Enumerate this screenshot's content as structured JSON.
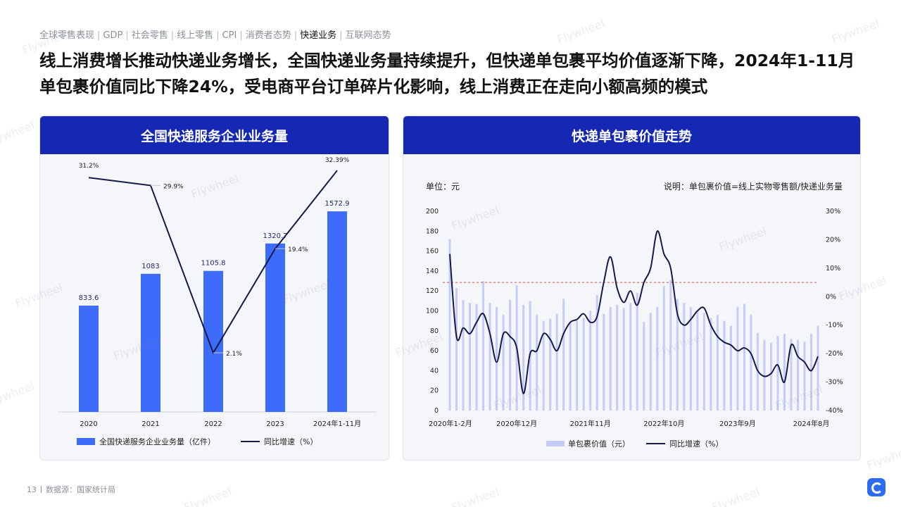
{
  "nav": {
    "items": [
      "全球零售表现",
      "GDP",
      "社会零售",
      "线上零售",
      "CPI",
      "消费者态势",
      "快递业务",
      "互联网态势"
    ],
    "active_index": 6
  },
  "headline": "线上消费增长推动快递业务增长，全国快递业务量持续提升，但快递单包裹平均价值逐渐下降，2024年1-11月单包裹价值同比下降24%，受电商平台订单碎片化影响，线上消费正在走向小额高频的模式",
  "panel_left": {
    "title": "全国快递服务企业业务量"
  },
  "panel_right": {
    "title": "快递单包裹价值走势",
    "unit_label": "单位：元",
    "note": "说明：单包裹价值=线上实物零售额/快递业务量"
  },
  "footer": {
    "page": "13",
    "source": "数据源：国家统计局"
  },
  "watermark": "Flywheel",
  "colors": {
    "bar": "#3d6bfa",
    "line": "#141a4a",
    "header": "#1428b4",
    "bar_light": "#c3cdf7",
    "ref_line": "#e04a4a"
  },
  "chart_data": [
    {
      "type": "bar",
      "categories": [
        "2020",
        "2021",
        "2022",
        "2023",
        "2024年1-11月"
      ],
      "series": [
        {
          "name": "全国快递服务企业业务量（亿件）",
          "type": "bar",
          "values": [
            833.6,
            1083,
            1105.8,
            1320.7,
            1572.9
          ],
          "labels": [
            "833.6",
            "1083",
            "1105.8",
            "1320.7",
            "1572.9"
          ]
        },
        {
          "name": "同比增速（%）",
          "type": "line",
          "values": [
            31.2,
            29.9,
            2.1,
            19.4,
            32.39
          ],
          "labels": [
            "31.2%",
            "29.9%",
            "2.1%",
            "19.4%",
            "32.39%"
          ]
        }
      ],
      "ylim": [
        0,
        1800
      ],
      "y2lim": [
        0,
        35
      ]
    },
    {
      "type": "bar",
      "x_tick_labels": [
        "2020年1-2月",
        "2020年12月",
        "2021年11月",
        "2022年10月",
        "2023年9月",
        "2024年8月"
      ],
      "x_tick_indices": [
        0,
        10,
        21,
        32,
        43,
        54
      ],
      "ylim": [
        0,
        200
      ],
      "y_ticks": [
        "0",
        "20",
        "40",
        "60",
        "80",
        "100",
        "120",
        "140",
        "160",
        "180",
        "200"
      ],
      "y2lim": [
        -40,
        30
      ],
      "y2_ticks": [
        "-40%",
        "-30%",
        "-20%",
        "-10%",
        "0%",
        "10%",
        "20%",
        "30%"
      ],
      "ref_line_pct": 5,
      "series": [
        {
          "name": "单包裹价值（元）",
          "type": "bar",
          "values": [
            172,
            123,
            111,
            108,
            107,
            130,
            108,
            104,
            96,
            111,
            126,
            106,
            110,
            96,
            90,
            92,
            97,
            112,
            88,
            90,
            93,
            100,
            116,
            97,
            104,
            106,
            103,
            108,
            118,
            89,
            98,
            104,
            125,
            131,
            112,
            108,
            104,
            100,
            98,
            93,
            96,
            90,
            85,
            104,
            107,
            96,
            78,
            71,
            68,
            75,
            77,
            72,
            71,
            69,
            77,
            85
          ]
        },
        {
          "name": "同比增速（%）",
          "type": "line",
          "values": [
            15,
            -14,
            -11,
            -13,
            -9,
            -6,
            -13,
            -23,
            -13,
            -14,
            -18,
            -34,
            -20,
            -19,
            -13,
            -15,
            -19,
            -13,
            -9,
            -8,
            -6,
            -9,
            -7,
            5,
            14,
            3,
            -2,
            2,
            -3,
            5,
            10,
            23,
            15,
            10,
            -6,
            -10,
            -8,
            -5,
            -4,
            -10,
            -14,
            -16,
            -17,
            -19,
            -18,
            -20,
            -26,
            -28,
            -27,
            -24,
            -30,
            -17,
            -21,
            -23,
            -26,
            -21
          ]
        }
      ]
    }
  ]
}
